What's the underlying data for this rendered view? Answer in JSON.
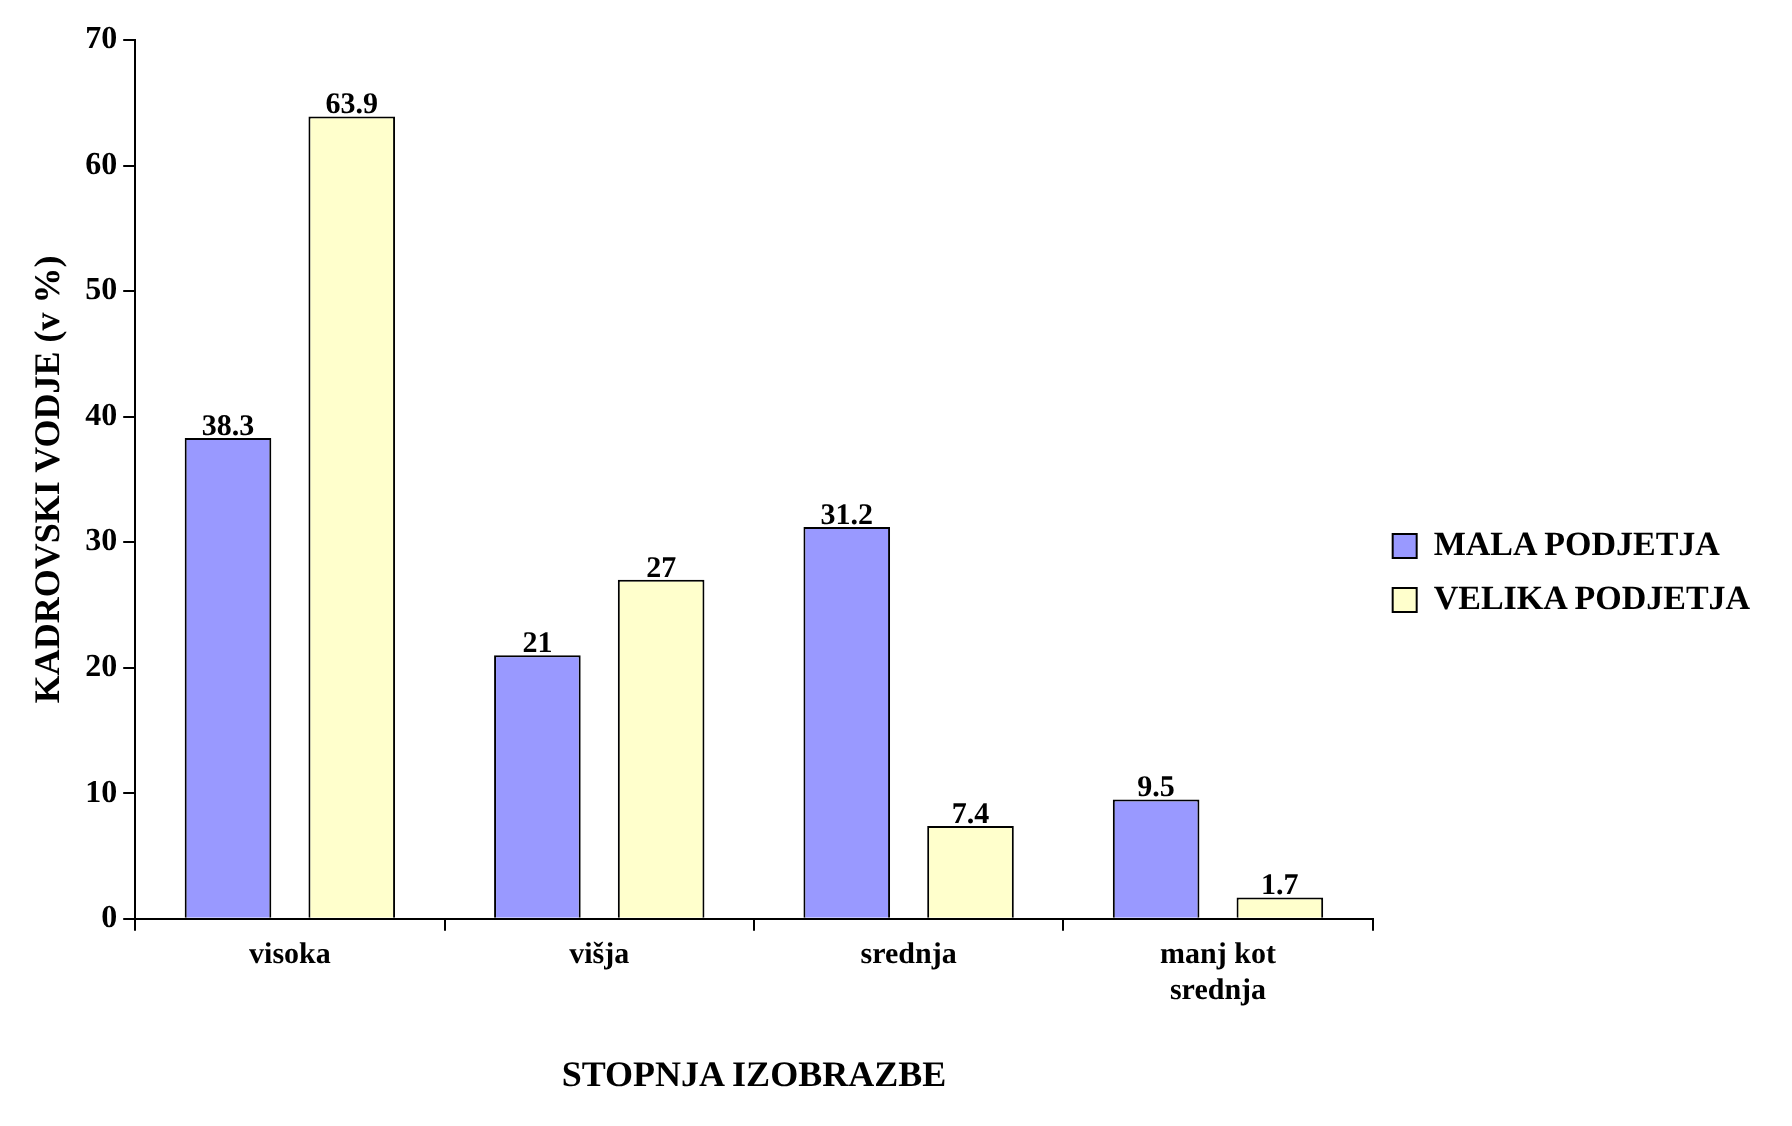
{
  "chart_data": {
    "type": "bar",
    "xlabel": "STOPNJA IZOBRAZBE",
    "ylabel": "KADROVSKI VODJE (v %)",
    "categories": [
      "visoka",
      "višja",
      "srednja",
      "manj kot srednja"
    ],
    "series": [
      {
        "name": "MALA PODJETJA",
        "color": "#9999ff",
        "values": [
          38.3,
          21,
          31.2,
          9.5
        ]
      },
      {
        "name": "VELIKA PODJETJA",
        "color": "#ffffcc",
        "values": [
          63.9,
          27,
          7.4,
          1.7
        ]
      }
    ],
    "ylim": [
      0,
      70
    ],
    "yticks": [
      0,
      10,
      20,
      30,
      40,
      50,
      60,
      70
    ],
    "grid": false,
    "legend": "right",
    "data_labels": true
  }
}
